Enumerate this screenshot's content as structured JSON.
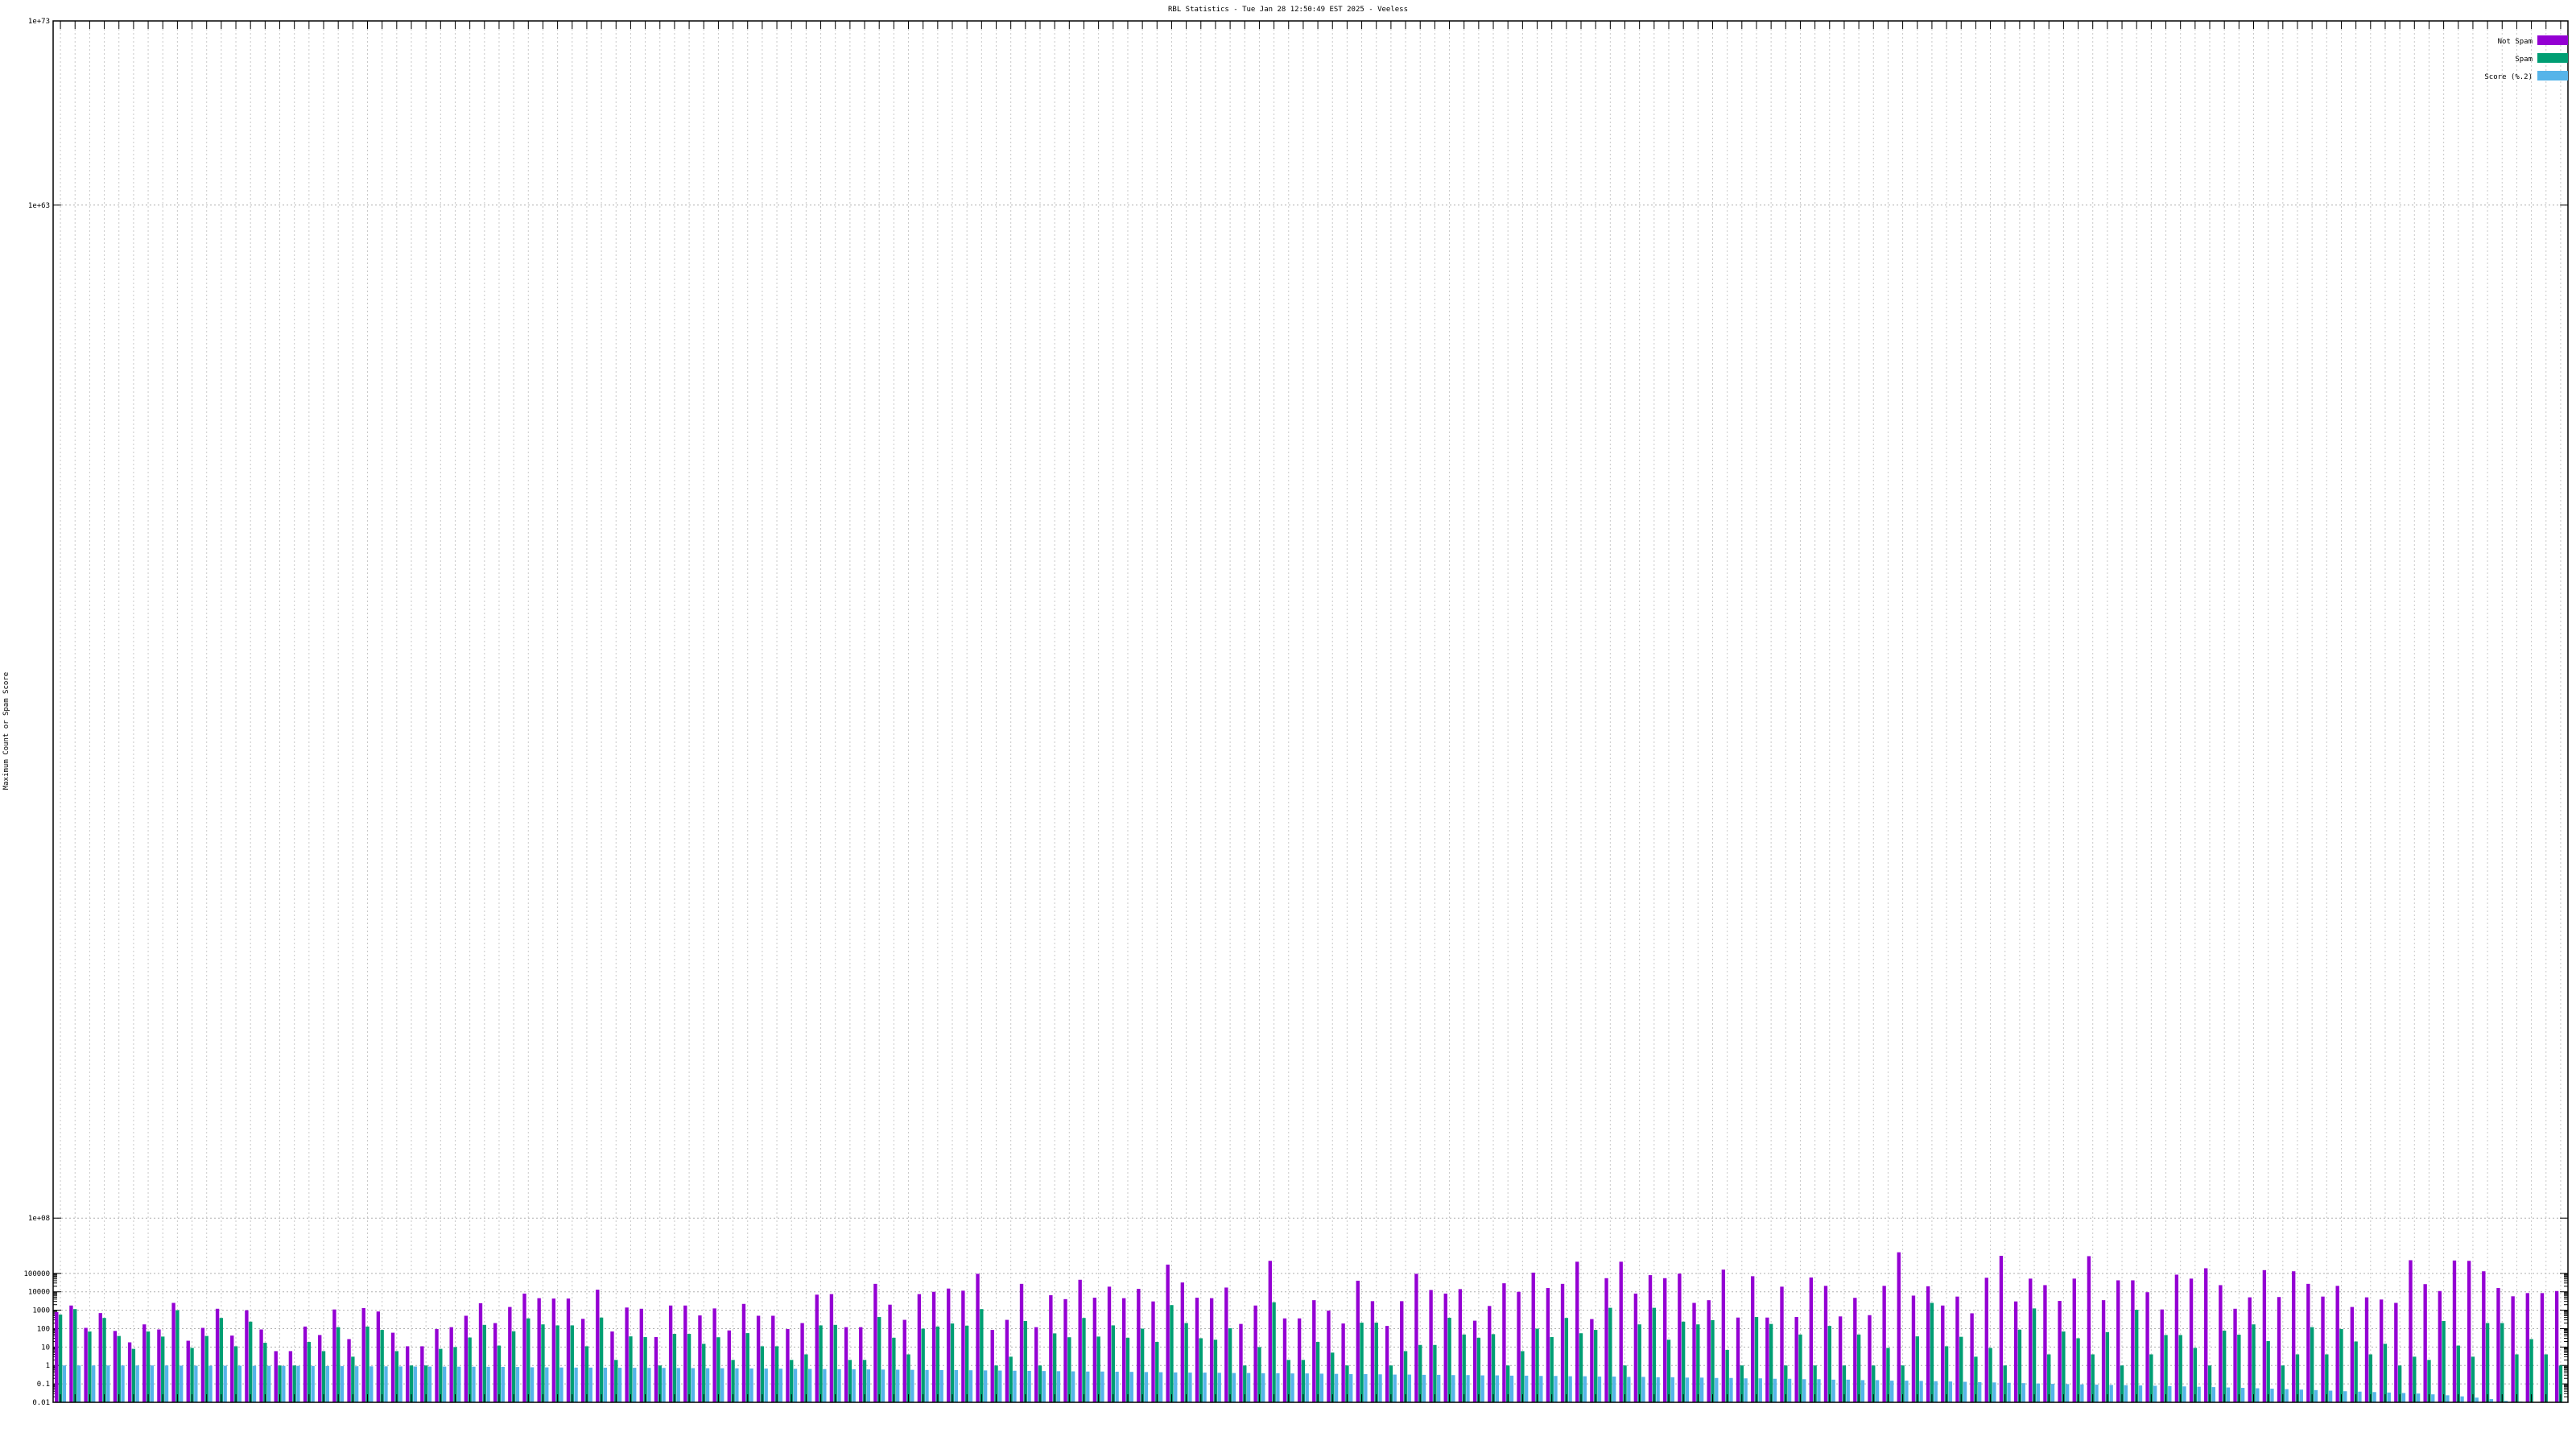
{
  "chart_data": {
    "type": "bar",
    "title": "RBL Statistics - Tue Jan 28 12:50:49 EST 2025 - Veeless",
    "ylabel": "Maximum Count or Spam Score",
    "xlabel": "",
    "yscale": "log",
    "ylim": [
      0.01,
      1e+73
    ],
    "yticks": [
      "0.01",
      "0.1",
      "1",
      "10",
      "100",
      "1000",
      "10000",
      "100000",
      "1e+08",
      "1e+63",
      "1e+73"
    ],
    "grid": true,
    "legend_position": "top-right",
    "series": [
      {
        "name": "Not Spam",
        "color": "#9400d3",
        "values": [
          800,
          1800,
          110,
          700,
          75,
          18,
          170,
          90,
          2500,
          22,
          110,
          1200,
          42,
          1000,
          90,
          6,
          6,
          130,
          45,
          1100,
          27,
          1300,
          850,
          60,
          11,
          11,
          95,
          120,
          500,
          2400,
          200,
          1500,
          8000,
          4500,
          4300,
          4300,
          340,
          13000,
          70,
          1400,
          1200,
          35,
          1800,
          1800,
          520,
          1250,
          80,
          2200,
          500,
          500,
          95,
          200,
          7000,
          7500,
          120,
          120,
          27000,
          2000,
          300,
          7500,
          10000,
          15000,
          11500,
          95000,
          85,
          300,
          27000,
          120,
          6500,
          4000,
          45000,
          4800,
          19000,
          4500,
          14500,
          3000,
          300000,
          32000,
          4800,
          4500,
          17000,
          180,
          1800,
          480000,
          360,
          360,
          3500,
          950,
          190,
          40000,
          3100,
          140,
          3100,
          95000,
          12500,
          8000,
          14000,
          270,
          1700,
          29000,
          10000,
          110000,
          16000,
          27000,
          430000,
          330,
          55000,
          430000,
          8000,
          80000,
          55000,
          97000,
          2500,
          3500,
          160000,
          400,
          70000,
          400,
          19000,
          430,
          60000,
          21000,
          460,
          4700,
          540,
          21000,
          1400000,
          6200,
          20000,
          1800,
          5500,
          680,
          58000,
          900000,
          3000,
          52000,
          23000,
          3200,
          52000,
          860000,
          3500,
          42000,
          42000,
          9500,
          1100,
          85000,
          52000,
          190000,
          23000,
          1200,
          5000,
          150000,
          5200,
          130000,
          27000,
          5500,
          21000,
          1500,
          5000,
          3800,
          2500,
          520000,
          26000,
          11000,
          500000,
          480000,
          130000,
          16000,
          5700,
          8500,
          8500,
          11000
        ]
      },
      {
        "name": "Spam",
        "color": "#009e73",
        "values": [
          580,
          1150,
          70,
          380,
          40,
          8,
          70,
          37,
          1000,
          9,
          40,
          380,
          11,
          240,
          17,
          1,
          1,
          19,
          6,
          120,
          3,
          130,
          85,
          6,
          1,
          1,
          8,
          10,
          33,
          160,
          12,
          72,
          360,
          170,
          150,
          150,
          11,
          400,
          2,
          38,
          35,
          1,
          52,
          52,
          15,
          34,
          2,
          57,
          11,
          11,
          2,
          4,
          150,
          160,
          2,
          2,
          430,
          32,
          4,
          100,
          130,
          190,
          145,
          1150,
          1,
          3,
          260,
          1,
          55,
          34,
          380,
          37,
          150,
          32,
          100,
          19,
          1900,
          200,
          30,
          25,
          105,
          1,
          10,
          2700,
          2,
          2,
          19,
          5,
          1,
          210,
          210,
          1,
          6,
          13,
          13,
          390,
          48,
          32,
          50,
          1,
          6,
          100,
          35,
          380,
          56,
          85,
          1350,
          1,
          170,
          1350,
          25,
          240,
          170,
          290,
          7,
          1,
          430,
          180,
          1,
          48,
          1,
          140,
          1,
          48,
          1,
          9,
          1,
          38,
          2500,
          11,
          36,
          3,
          9,
          1,
          88,
          1250,
          4,
          70,
          30,
          4,
          65,
          1,
          1050,
          4,
          45,
          45,
          9,
          1,
          78,
          47,
          170,
          21,
          1,
          4,
          120,
          4,
          95,
          20,
          4,
          15,
          1,
          3,
          2,
          260,
          12,
          3,
          200,
          200,
          4,
          27,
          4,
          1,
          1,
          1
        ]
      },
      {
        "name": "Score (%.2)",
        "color": "#56b4e9",
        "values": [
          1,
          1,
          1,
          1,
          1,
          1,
          1,
          1,
          0.98,
          0.97,
          0.97,
          0.97,
          0.97,
          0.96,
          0.96,
          0.95,
          0.95,
          0.94,
          0.93,
          0.92,
          0.91,
          0.9,
          0.9,
          0.89,
          0.88,
          0.87,
          0.87,
          0.86,
          0.86,
          0.85,
          0.84,
          0.83,
          0.8,
          0.79,
          0.78,
          0.77,
          0.77,
          0.76,
          0.75,
          0.75,
          0.74,
          0.74,
          0.73,
          0.72,
          0.71,
          0.71,
          0.7,
          0.69,
          0.68,
          0.67,
          0.66,
          0.65,
          0.64,
          0.63,
          0.62,
          0.61,
          0.6,
          0.59,
          0.58,
          0.57,
          0.56,
          0.56,
          0.55,
          0.54,
          0.53,
          0.52,
          0.51,
          0.5,
          0.49,
          0.48,
          0.47,
          0.47,
          0.46,
          0.45,
          0.44,
          0.43,
          0.42,
          0.41,
          0.41,
          0.4,
          0.39,
          0.39,
          0.38,
          0.38,
          0.37,
          0.37,
          0.36,
          0.35,
          0.34,
          0.34,
          0.33,
          0.32,
          0.32,
          0.31,
          0.31,
          0.3,
          0.3,
          0.29,
          0.29,
          0.28,
          0.28,
          0.27,
          0.27,
          0.26,
          0.26,
          0.25,
          0.25,
          0.24,
          0.24,
          0.23,
          0.23,
          0.22,
          0.22,
          0.21,
          0.21,
          0.2,
          0.2,
          0.19,
          0.19,
          0.18,
          0.18,
          0.17,
          0.17,
          0.16,
          0.16,
          0.15,
          0.15,
          0.145,
          0.14,
          0.135,
          0.13,
          0.125,
          0.12,
          0.115,
          0.11,
          0.105,
          0.1,
          0.097,
          0.094,
          0.091,
          0.088,
          0.085,
          0.082,
          0.079,
          0.076,
          0.073,
          0.07,
          0.067,
          0.064,
          0.061,
          0.058,
          0.055,
          0.052,
          0.049,
          0.046,
          0.043,
          0.04,
          0.038,
          0.036,
          0.034,
          0.032,
          0.03,
          0.027,
          0.024,
          0.021,
          0.018,
          0.015,
          0.012,
          0.011,
          0.01
        ]
      }
    ]
  }
}
